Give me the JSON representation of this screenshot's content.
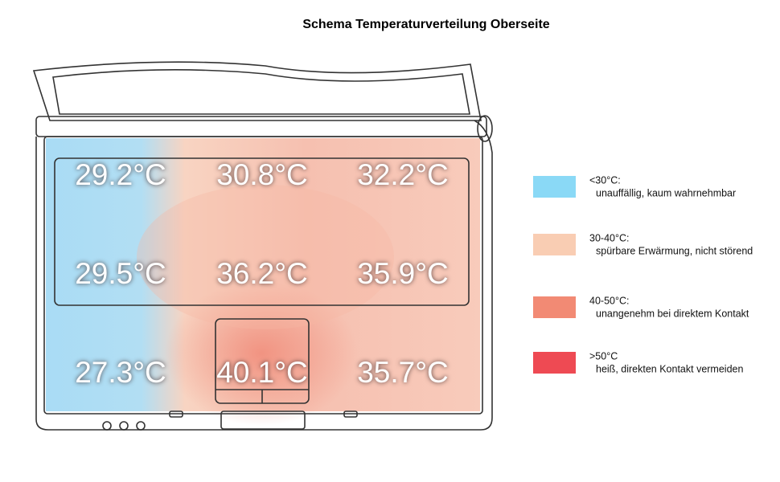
{
  "title": "Schema Temperaturverteilung Oberseite",
  "readings": [
    [
      "29.2°C",
      "30.8°C",
      "32.2°C"
    ],
    [
      "29.5°C",
      "36.2°C",
      "35.9°C"
    ],
    [
      "27.3°C",
      "40.1°C",
      "35.7°C"
    ]
  ],
  "legend": [
    {
      "color": "#8ad9f6",
      "range": "<30°C:",
      "description": "unauffällig, kaum wahrnehmbar"
    },
    {
      "color": "#f9cdb3",
      "range": "30-40°C:",
      "description": "spürbare Erwärmung, nicht störend"
    },
    {
      "color": "#f28a74",
      "range": "40-50°C:",
      "description": "unangenehm bei direktem Kontakt"
    },
    {
      "color": "#ee4a53",
      "range": ">50°C",
      "description": "heiß, direkten Kontakt vermeiden"
    }
  ]
}
